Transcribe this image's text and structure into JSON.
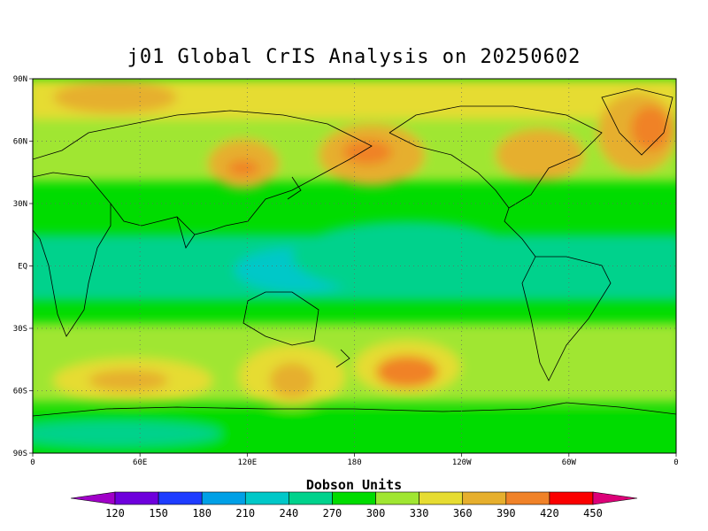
{
  "title": "j01 Global CrIS Analysis on 20250602",
  "map": {
    "lat_labels": [
      "90N",
      "60N",
      "30N",
      "EQ",
      "30S",
      "60S",
      "90S"
    ],
    "lon_labels": [
      "0",
      "60E",
      "120E",
      "180",
      "120W",
      "60W",
      "0"
    ],
    "grid": "dotted"
  },
  "colorbar": {
    "title": "Dobson Units",
    "levels": [
      120,
      150,
      180,
      210,
      240,
      270,
      300,
      330,
      360,
      390,
      420,
      450
    ],
    "colors": [
      "#a000c8",
      "#6e00dc",
      "#1e3cff",
      "#00a0e6",
      "#00c8c8",
      "#00d28c",
      "#00dc00",
      "#a0e632",
      "#e6dc32",
      "#e6af2d",
      "#f08228",
      "#fa0000",
      "#dc0078"
    ]
  },
  "chart_data": {
    "type": "heatmap",
    "title": "j01 Global CrIS Analysis on 20250602",
    "units": "Dobson Units",
    "x_range": [
      0,
      360
    ],
    "y_range": [
      -90,
      90
    ],
    "note_values": [
      {
        "lat": 55,
        "lon": 195,
        "value": 440
      },
      {
        "lat": 45,
        "lon": 110,
        "value": 420
      },
      {
        "lat": 60,
        "lon": 340,
        "value": 430
      },
      {
        "lat": -50,
        "lon": 195,
        "value": 390
      },
      {
        "lat": -45,
        "lon": 40,
        "value": 390
      },
      {
        "lat": 0,
        "lon": 150,
        "value": 250
      }
    ]
  }
}
